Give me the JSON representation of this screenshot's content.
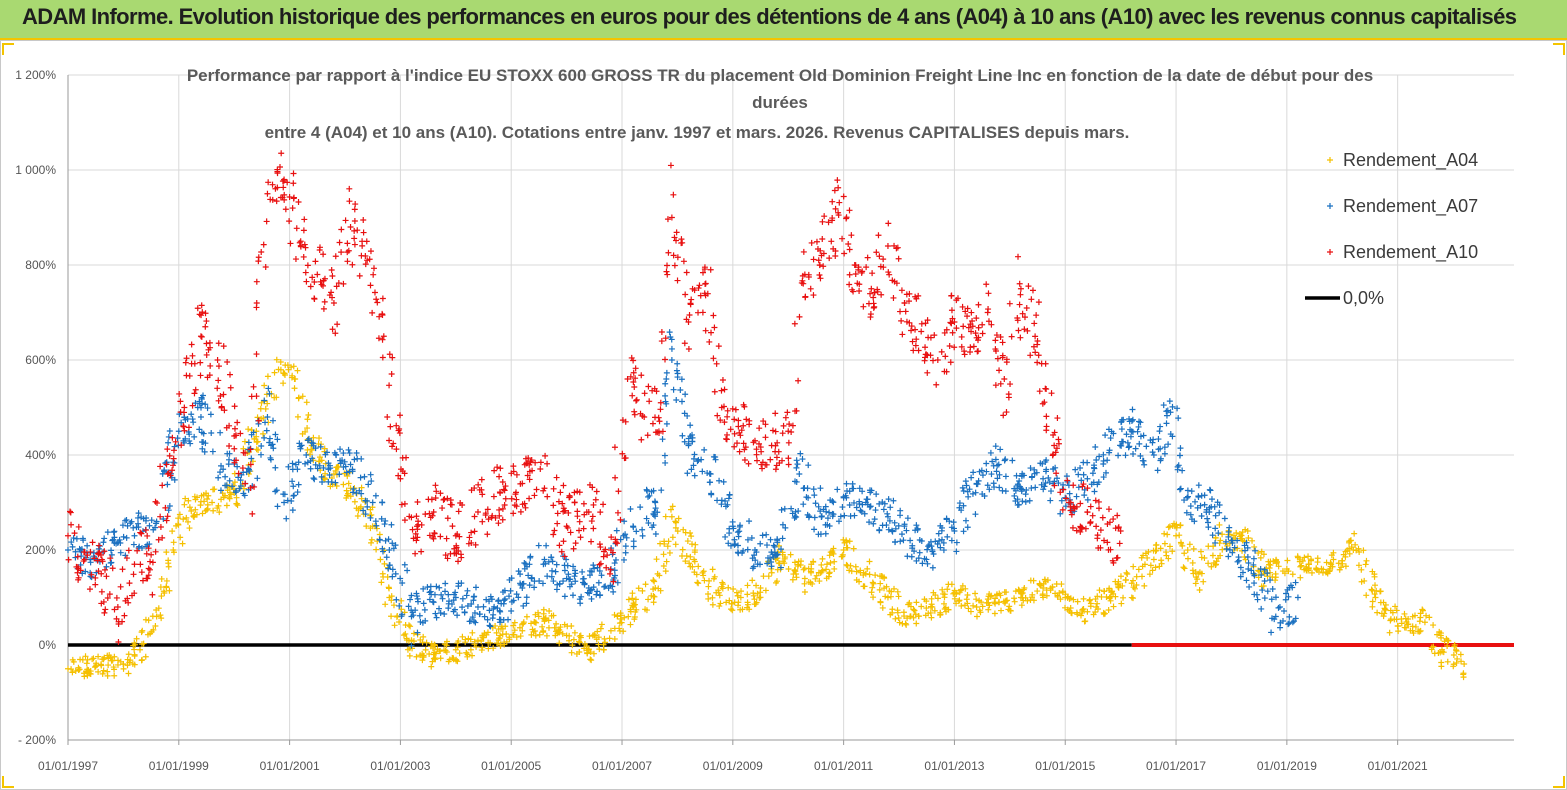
{
  "header": {
    "title": "ADAM Informe. Evolution historique des performances en euros pour des détentions de 4 ans (A04) à 10 ans (A10) avec les revenus connus capitalisés"
  },
  "colors": {
    "banner": "#a9d971",
    "a04": "#f5c000",
    "a07": "#1a70c0",
    "a10": "#e81010",
    "zero": "#000000"
  },
  "chart_data": {
    "type": "scatter",
    "title_lines": [
      "Performance par rapport à l'indice EU STOXX 600 GROSS TR  du placement Old Dominion Freight Line Inc en fonction de la date de début pour des",
      "durées",
      "entre 4 (A04) et 10 ans (A10).  Cotations entre janv. 1997 et mars. 2026. Revenus CAPITALISES depuis mars."
    ],
    "xlabel": "",
    "ylabel": "",
    "xlim": [
      1997.0,
      2023.1
    ],
    "ylim": [
      -200,
      1200
    ],
    "y_ticks": [
      -200,
      0,
      200,
      400,
      600,
      800,
      1000,
      1200
    ],
    "y_tick_labels": [
      "- 200%",
      "0%",
      "200%",
      "400%",
      "600%",
      "800%",
      "1 000%",
      "1 200%"
    ],
    "x_ticks": [
      1997,
      1999,
      2001,
      2003,
      2005,
      2007,
      2009,
      2011,
      2013,
      2015,
      2017,
      2019,
      2021
    ],
    "x_tick_labels": [
      "01/01/1997",
      "01/01/1999",
      "01/01/2001",
      "01/01/2003",
      "01/01/2005",
      "01/01/2007",
      "01/01/2009",
      "01/01/2011",
      "01/01/2013",
      "01/01/2015",
      "01/01/2017",
      "01/01/2019",
      "01/01/2021"
    ],
    "legend_position": "right",
    "series": [
      {
        "name": "Rendement_A04",
        "marker": "+",
        "color": "#f5c000",
        "x": [
          1997.0,
          1997.5,
          1998.0,
          1998.3,
          1998.6,
          1998.9,
          1999.2,
          1999.6,
          2000.0,
          2000.4,
          2000.8,
          2001.1,
          2001.4,
          2001.8,
          2002.1,
          2002.5,
          2002.8,
          2003.2,
          2003.6,
          2004.0,
          2004.4,
          2004.8,
          2005.2,
          2005.6,
          2006.0,
          2006.4,
          2006.8,
          2007.2,
          2007.6,
          2007.9,
          2008.3,
          2008.7,
          2009.1,
          2009.5,
          2009.9,
          2010.3,
          2010.7,
          2011.0,
          2011.4,
          2011.8,
          2012.2,
          2012.6,
          2013.0,
          2013.4,
          2013.8,
          2014.2,
          2014.6,
          2015.0,
          2015.4,
          2015.8,
          2016.2,
          2016.6,
          2017.0,
          2017.4,
          2017.8,
          2018.2,
          2018.6,
          2019.0,
          2019.4,
          2019.8,
          2020.2,
          2020.6,
          2021.0,
          2021.4,
          2021.8,
          2022.2
        ],
        "y": [
          -50,
          -45,
          -40,
          -10,
          60,
          200,
          290,
          300,
          320,
          450,
          580,
          560,
          420,
          360,
          330,
          250,
          100,
          10,
          -20,
          -10,
          10,
          20,
          30,
          50,
          20,
          -10,
          30,
          80,
          120,
          270,
          180,
          110,
          90,
          120,
          190,
          140,
          170,
          200,
          150,
          100,
          60,
          80,
          110,
          80,
          90,
          100,
          120,
          100,
          70,
          100,
          130,
          180,
          230,
          150,
          220,
          220,
          150,
          160,
          170,
          170,
          200,
          100,
          40,
          50,
          -10,
          -40
        ]
      },
      {
        "name": "Rendement_A07",
        "marker": "+",
        "color": "#1a70c0",
        "x": [
          1997.0,
          1997.4,
          1997.8,
          1998.2,
          1998.6,
          1999.0,
          1999.4,
          1999.8,
          2000.2,
          2000.6,
          2000.9,
          2001.3,
          2001.7,
          2002.1,
          2002.5,
          2002.8,
          2003.2,
          2003.6,
          2004.0,
          2004.4,
          2004.8,
          2005.2,
          2005.6,
          2006.0,
          2006.4,
          2006.8,
          2007.2,
          2007.6,
          2007.9,
          2008.2,
          2008.6,
          2009.0,
          2009.4,
          2009.8,
          2010.2,
          2010.6,
          2011.0,
          2011.4,
          2011.8,
          2012.2,
          2012.6,
          2013.0,
          2013.4,
          2013.8,
          2014.2,
          2014.6,
          2015.0,
          2015.4,
          2015.8,
          2016.2,
          2016.6,
          2016.9,
          2017.2,
          2017.6,
          2018.0,
          2018.4,
          2018.8,
          2019.2
        ],
        "y": [
          200,
          180,
          220,
          230,
          260,
          450,
          480,
          370,
          340,
          480,
          300,
          400,
          370,
          380,
          300,
          200,
          60,
          90,
          100,
          80,
          70,
          120,
          180,
          140,
          120,
          160,
          250,
          300,
          600,
          420,
          360,
          250,
          200,
          190,
          360,
          270,
          310,
          300,
          270,
          220,
          200,
          240,
          340,
          380,
          330,
          350,
          310,
          350,
          410,
          450,
          400,
          490,
          310,
          280,
          220,
          150,
          60,
          100
        ]
      },
      {
        "name": "Rendement_A10",
        "marker": "+",
        "color": "#e81010",
        "x": [
          1997.0,
          1997.3,
          1997.6,
          1997.9,
          1998.2,
          1998.5,
          1998.8,
          1999.1,
          1999.4,
          1999.7,
          2000.0,
          2000.3,
          2000.6,
          2000.9,
          2001.2,
          2001.5,
          2001.8,
          2002.1,
          2002.4,
          2002.7,
          2003.0,
          2003.3,
          2003.6,
          2004.0,
          2004.4,
          2004.8,
          2005.2,
          2005.6,
          2006.0,
          2006.4,
          2006.8,
          2007.1,
          2007.4,
          2007.7,
          2007.9,
          2008.2,
          2008.5,
          2008.8,
          2009.1,
          2009.4,
          2009.7,
          2010.0,
          2010.3,
          2010.6,
          2010.9,
          2011.2,
          2011.5,
          2011.8,
          2012.1,
          2012.4,
          2012.7,
          2013.0,
          2013.3,
          2013.6,
          2013.9,
          2014.2,
          2014.5,
          2014.8,
          2015.1,
          2015.4,
          2015.7,
          2016.0
        ],
        "y": [
          230,
          180,
          150,
          80,
          170,
          190,
          360,
          500,
          650,
          600,
          440,
          380,
          950,
          980,
          850,
          780,
          720,
          880,
          810,
          650,
          350,
          250,
          280,
          230,
          280,
          320,
          340,
          330,
          250,
          280,
          200,
          560,
          480,
          510,
          900,
          680,
          760,
          500,
          460,
          430,
          420,
          450,
          780,
          820,
          910,
          800,
          750,
          840,
          720,
          660,
          600,
          680,
          660,
          700,
          560,
          750,
          640,
          420,
          300,
          280,
          220,
          240
        ]
      },
      {
        "name": "0,0%",
        "marker": "line",
        "color": "#000000",
        "x": [
          1997.0,
          2016.2
        ],
        "y": [
          0,
          0
        ]
      }
    ],
    "zero_segment": {
      "color": "#e81010",
      "x": [
        2016.2,
        2023.1
      ],
      "y": [
        0,
        0
      ]
    }
  }
}
